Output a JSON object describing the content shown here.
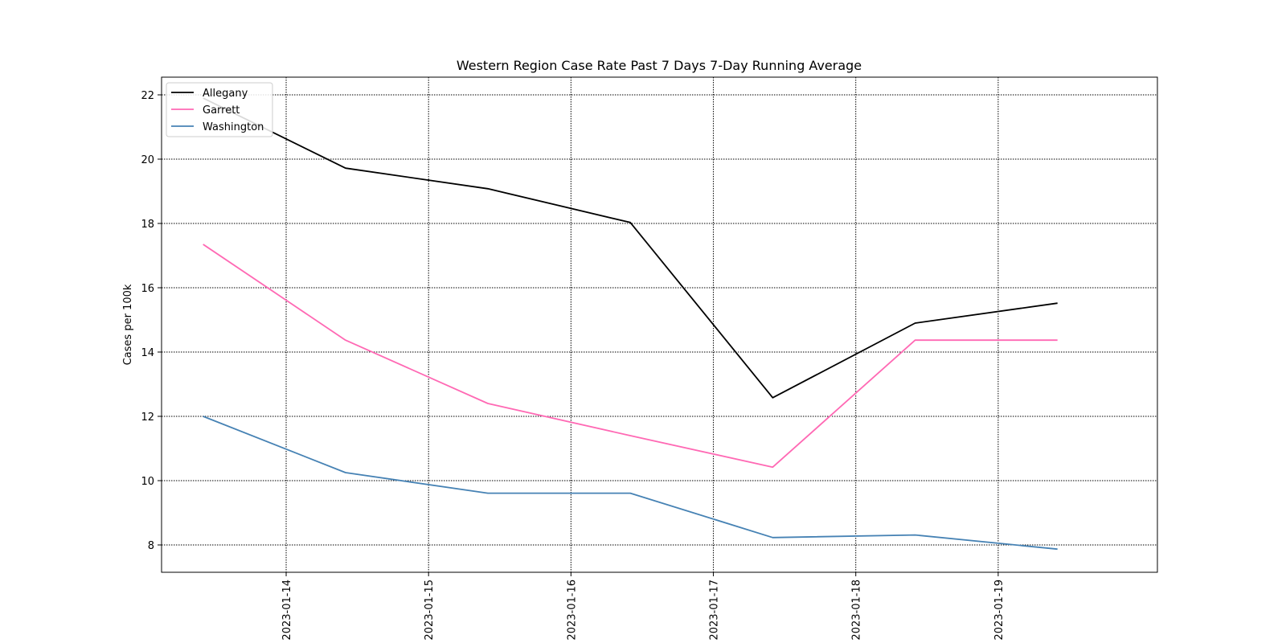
{
  "chart_data": {
    "type": "line",
    "title": "Western Region Case Rate  Past 7 Days 7-Day Running Average",
    "xlabel": "",
    "ylabel": "Cases per 100k",
    "x": [
      "2023-01-13T10:00",
      "2023-01-14T10:00",
      "2023-01-15T10:00",
      "2023-01-16T10:00",
      "2023-01-17T10:00",
      "2023-01-18T10:00",
      "2023-01-19T10:00"
    ],
    "x_ticks": [
      "2023-01-14",
      "2023-01-15",
      "2023-01-16",
      "2023-01-17",
      "2023-01-18",
      "2023-01-19"
    ],
    "xlim": [
      "2023-01-13T03:00",
      "2023-01-20T02:50"
    ],
    "ylim": [
      7.15,
      22.55
    ],
    "y_ticks": [
      8,
      10,
      12,
      14,
      16,
      18,
      20,
      22
    ],
    "grid": true,
    "legend_position": "top-left",
    "series": [
      {
        "name": "Allegany",
        "color": "#000000",
        "values": [
          21.9,
          19.72,
          19.08,
          18.03,
          12.58,
          14.9,
          15.52
        ]
      },
      {
        "name": "Garrett",
        "color": "#ff69b4",
        "values": [
          17.35,
          14.37,
          12.4,
          11.4,
          10.42,
          14.37,
          14.37
        ]
      },
      {
        "name": "Washington",
        "color": "#4682b4",
        "values": [
          12.0,
          10.25,
          9.61,
          9.61,
          8.23,
          8.31,
          7.87
        ]
      }
    ]
  }
}
